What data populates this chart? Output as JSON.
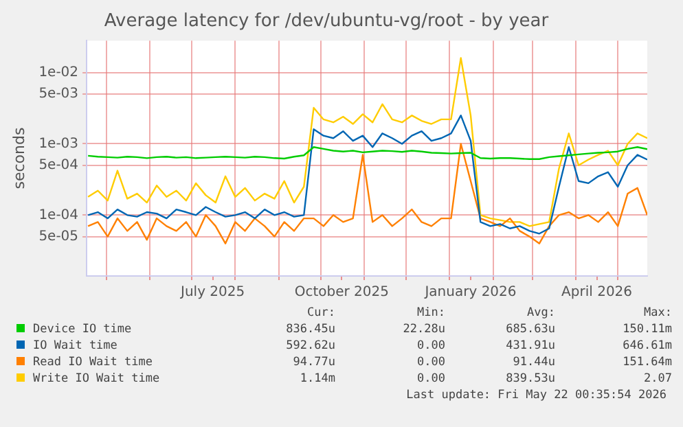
{
  "chart_data": {
    "type": "line",
    "title": "Average latency for /dev/ubuntu-vg/root - by year",
    "ylabel": "seconds",
    "log": "y",
    "grid": true,
    "legend": "bottom",
    "marker": "none",
    "line_style": "solid",
    "x": [
      "2025-04-18",
      "2025-04-25",
      "2025-05-02",
      "2025-05-09",
      "2025-05-16",
      "2025-05-23",
      "2025-05-30",
      "2025-06-06",
      "2025-06-13",
      "2025-06-20",
      "2025-06-27",
      "2025-07-04",
      "2025-07-11",
      "2025-07-18",
      "2025-07-25",
      "2025-08-01",
      "2025-08-08",
      "2025-08-15",
      "2025-08-22",
      "2025-08-29",
      "2025-09-05",
      "2025-09-12",
      "2025-09-19",
      "2025-09-26",
      "2025-10-03",
      "2025-10-10",
      "2025-10-17",
      "2025-10-24",
      "2025-10-31",
      "2025-11-07",
      "2025-11-14",
      "2025-11-21",
      "2025-11-28",
      "2025-12-05",
      "2025-12-12",
      "2025-12-19",
      "2025-12-26",
      "2026-01-02",
      "2026-01-09",
      "2026-01-16",
      "2026-01-23",
      "2026-01-30",
      "2026-02-06",
      "2026-02-13",
      "2026-02-20",
      "2026-02-27",
      "2026-03-06",
      "2026-03-13",
      "2026-03-20",
      "2026-03-27",
      "2026-04-03",
      "2026-04-10",
      "2026-04-17",
      "2026-04-24",
      "2026-05-01",
      "2026-05-08",
      "2026-05-15",
      "2026-05-22"
    ],
    "xlim": [
      "2025-04-17",
      "2026-05-22"
    ],
    "xticks": [
      {
        "value": "2025-05-01",
        "label": null
      },
      {
        "value": "2025-06-01",
        "label": null
      },
      {
        "value": "2025-07-01",
        "label": null
      },
      {
        "value": "2025-07-16",
        "label": "July 2025"
      },
      {
        "value": "2025-08-01",
        "label": null
      },
      {
        "value": "2025-09-01",
        "label": null
      },
      {
        "value": "2025-10-01",
        "label": null
      },
      {
        "value": "2025-10-16",
        "label": "October 2025"
      },
      {
        "value": "2025-11-01",
        "label": null
      },
      {
        "value": "2025-12-01",
        "label": null
      },
      {
        "value": "2026-01-01",
        "label": null
      },
      {
        "value": "2026-01-16",
        "label": "January 2026"
      },
      {
        "value": "2026-02-01",
        "label": null
      },
      {
        "value": "2026-03-01",
        "label": null
      },
      {
        "value": "2026-04-01",
        "label": null
      },
      {
        "value": "2026-04-16",
        "label": "April 2026"
      },
      {
        "value": "2026-05-01",
        "label": null
      }
    ],
    "ylim": [
      1.4e-05,
      0.028
    ],
    "yticks": [
      {
        "value": 5e-05,
        "label": "5e-05"
      },
      {
        "value": 0.0001,
        "label": "1e-04"
      },
      {
        "value": 0.0005,
        "label": "5e-04"
      },
      {
        "value": 0.001,
        "label": "1e-03"
      },
      {
        "value": 0.005,
        "label": "5e-03"
      },
      {
        "value": 0.01,
        "label": "1e-02"
      }
    ],
    "series": [
      {
        "name": "Device IO time",
        "color": "#00cc00",
        "values": [
          0.00068,
          0.00066,
          0.00065,
          0.00064,
          0.00066,
          0.00065,
          0.00063,
          0.00065,
          0.00066,
          0.00064,
          0.00065,
          0.00063,
          0.00064,
          0.00065,
          0.00066,
          0.00065,
          0.00064,
          0.00066,
          0.00065,
          0.00063,
          0.00062,
          0.00066,
          0.00069,
          0.0009,
          0.00085,
          0.0008,
          0.00078,
          0.0008,
          0.00076,
          0.00078,
          0.0008,
          0.00079,
          0.00077,
          0.0008,
          0.00078,
          0.00075,
          0.00074,
          0.00073,
          0.00074,
          0.00075,
          0.00063,
          0.00062,
          0.00063,
          0.00063,
          0.00062,
          0.00061,
          0.00061,
          0.00065,
          0.00067,
          0.00069,
          0.00071,
          0.00073,
          0.00075,
          0.00076,
          0.00078,
          0.00085,
          0.0009,
          0.00084
        ]
      },
      {
        "name": "IO Wait time",
        "color": "#0066b3",
        "values": [
          0.0001,
          0.00011,
          9e-05,
          0.00012,
          0.0001,
          9.5e-05,
          0.00011,
          0.000105,
          9e-05,
          0.00012,
          0.00011,
          0.0001,
          0.00013,
          0.00011,
          9.5e-05,
          0.0001,
          0.00011,
          9e-05,
          0.00012,
          0.0001,
          0.00011,
          9.5e-05,
          0.0001,
          0.0016,
          0.0013,
          0.0012,
          0.0015,
          0.0011,
          0.0013,
          0.0009,
          0.0014,
          0.0012,
          0.001,
          0.0013,
          0.0015,
          0.0011,
          0.0012,
          0.0014,
          0.0025,
          0.0011,
          8e-05,
          7e-05,
          7.5e-05,
          6.5e-05,
          7e-05,
          6e-05,
          5.5e-05,
          6.5e-05,
          0.00025,
          0.0009,
          0.0003,
          0.00028,
          0.00035,
          0.0004,
          0.00025,
          0.0005,
          0.0007,
          0.0006
        ]
      },
      {
        "name": "Read IO Wait time",
        "color": "#ff8000",
        "values": [
          7e-05,
          8e-05,
          5e-05,
          9e-05,
          6e-05,
          8e-05,
          4.5e-05,
          9e-05,
          7e-05,
          6e-05,
          8e-05,
          5e-05,
          0.0001,
          7e-05,
          4e-05,
          8e-05,
          6e-05,
          9e-05,
          7e-05,
          5e-05,
          8e-05,
          6e-05,
          9e-05,
          9e-05,
          7e-05,
          0.0001,
          8e-05,
          9e-05,
          0.0007,
          8e-05,
          0.0001,
          7e-05,
          9e-05,
          0.00012,
          8e-05,
          7e-05,
          9e-05,
          9e-05,
          0.001,
          0.0003,
          9e-05,
          8e-05,
          7e-05,
          9e-05,
          6e-05,
          5e-05,
          4e-05,
          7e-05,
          0.0001,
          0.00011,
          9e-05,
          0.0001,
          8e-05,
          0.00011,
          7e-05,
          0.0002,
          0.00024,
          0.0001
        ]
      },
      {
        "name": "Write IO Wait time",
        "color": "#ffcc00",
        "values": [
          0.00018,
          0.00022,
          0.00016,
          0.00042,
          0.00017,
          0.0002,
          0.00015,
          0.00026,
          0.00018,
          0.00022,
          0.00016,
          0.00028,
          0.00019,
          0.00015,
          0.00035,
          0.00018,
          0.00024,
          0.00016,
          0.0002,
          0.00017,
          0.0003,
          0.00015,
          0.00025,
          0.0032,
          0.0022,
          0.002,
          0.0024,
          0.0019,
          0.0026,
          0.002,
          0.0036,
          0.0022,
          0.002,
          0.0025,
          0.0021,
          0.0019,
          0.0022,
          0.0022,
          0.016,
          0.0025,
          0.0001,
          9e-05,
          8.5e-05,
          8e-05,
          8e-05,
          7e-05,
          7.5e-05,
          8e-05,
          0.00045,
          0.0014,
          0.0005,
          0.0006,
          0.0007,
          0.0008,
          0.0005,
          0.001,
          0.0014,
          0.0012
        ]
      }
    ],
    "annotations": [
      "Cur:",
      "Min:",
      "Avg:",
      "Max:",
      "836.45u",
      "22.28u",
      "685.63u",
      "150.11m",
      "592.62u",
      "0.00",
      "431.91u",
      "646.61m",
      "94.77u",
      "0.00",
      "91.44u",
      "151.64m",
      "1.14m",
      "0.00",
      "839.53u",
      "2.07",
      "Last update: Fri May 22 00:35:54 2026"
    ]
  }
}
